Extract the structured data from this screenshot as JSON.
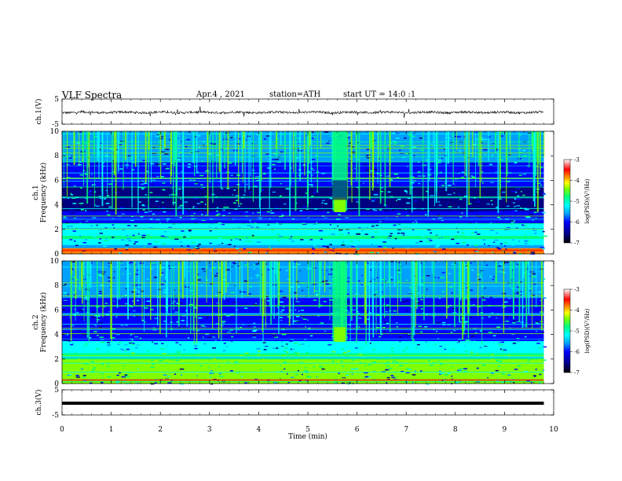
{
  "header": {
    "title": "VLF Spectra",
    "date": "Apr.4 , 2021",
    "station": "station=ATH",
    "start_ut": "start UT = 14:0 :1"
  },
  "colors": {
    "spectrogram_palette": [
      "#000000",
      "#000080",
      "#0000ff",
      "#00a0ff",
      "#00ffff",
      "#00ff80",
      "#80ff00",
      "#ffff00",
      "#ff8000",
      "#ff0000",
      "#ffffff"
    ],
    "waveform": "#000000",
    "axis": "#000000"
  },
  "chart_data": [
    {
      "type": "line",
      "name": "ch1-waveform",
      "ylabel": "ch.1(V)",
      "ylim": [
        -5,
        5
      ],
      "yticks": [
        "5",
        "-5"
      ],
      "xlim": [
        0,
        10
      ],
      "trace": "noisy waveform centered near 0 V, amplitude about ±0.5 V with sferic spikes"
    },
    {
      "type": "heatmap",
      "name": "ch1-spectrogram",
      "ylabel_channel": "ch.1",
      "ylabel": "Frequency (kHz)",
      "ylim": [
        0,
        10
      ],
      "yticks": [
        "10",
        "8",
        "6",
        "4",
        "2",
        "0"
      ],
      "xlim": [
        0,
        10
      ],
      "data_extent_min": 9.8,
      "colorbar": {
        "label": "log(PSD)(V²/Hz)",
        "range": [
          -7,
          -3
        ],
        "ticks": [
          "-3",
          "-4",
          "-5",
          "-6",
          "-7"
        ]
      },
      "features": {
        "dark_band_khz": [
          3.5,
          5.5
        ],
        "broadband_burst_min": [
          5.5,
          5.8
        ]
      }
    },
    {
      "type": "heatmap",
      "name": "ch2-spectrogram",
      "ylabel_channel": "ch.2",
      "ylabel": "Frequency (kHz)",
      "ylim": [
        0,
        10
      ],
      "yticks": [
        "10",
        "8",
        "6",
        "4",
        "2",
        "0"
      ],
      "xlim": [
        0,
        10
      ],
      "data_extent_min": 9.8,
      "colorbar": {
        "label": "log(PSD)(V²/Hz)",
        "range": [
          -7,
          -3
        ],
        "ticks": [
          "-3",
          "-4",
          "-5",
          "-6",
          "-7"
        ]
      },
      "features": {
        "green_band_khz": [
          1.5,
          2.5
        ],
        "broadband_burst_min": [
          5.5,
          5.8
        ]
      }
    },
    {
      "type": "line",
      "name": "ch3-waveform",
      "ylabel": "ch.3(V)",
      "ylim": [
        -5,
        5
      ],
      "yticks": [
        "5",
        "-5"
      ],
      "xlim": [
        0,
        10
      ],
      "trace": "thick flat line near 0 V"
    }
  ],
  "x_axis": {
    "label": "Time (min)",
    "ticks": [
      "0",
      "1",
      "2",
      "3",
      "4",
      "5",
      "6",
      "7",
      "8",
      "9",
      "10"
    ]
  }
}
